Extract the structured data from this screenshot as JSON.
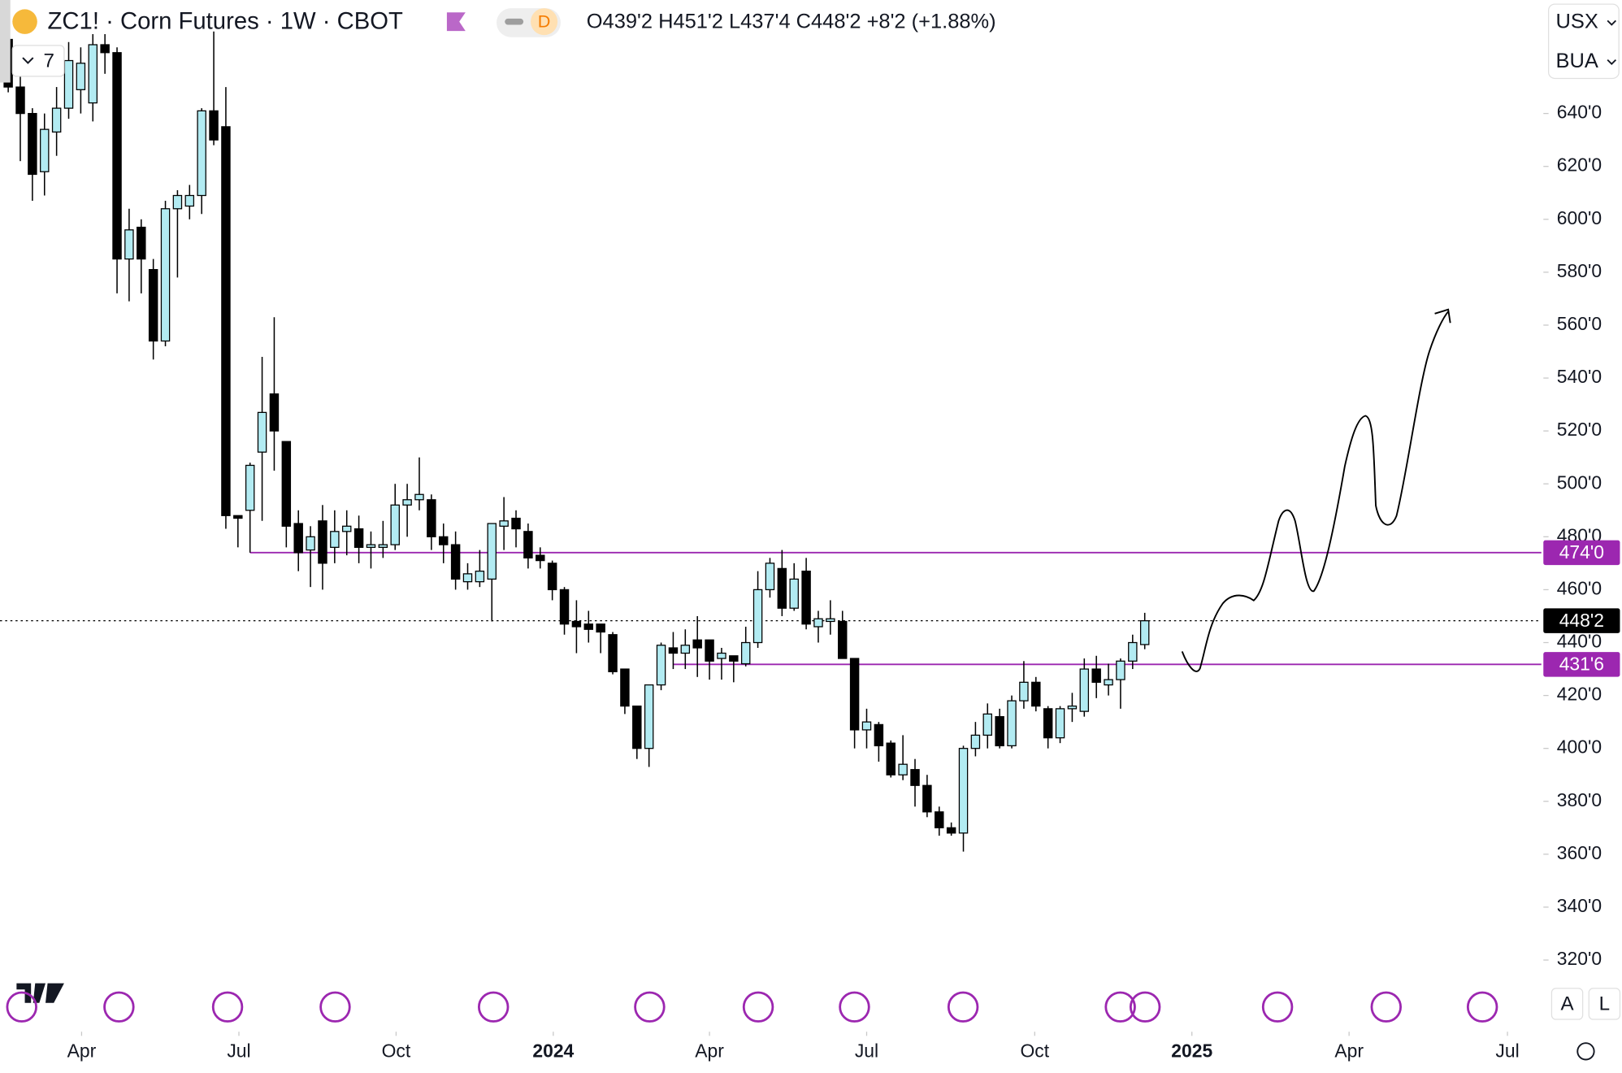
{
  "header": {
    "symbol": "ZC1! · Corn Futures · 1W · CBOT",
    "badge": "D",
    "ohlc": "O439'2 H451'2 L437'4 C448'2 +8'2 (+1.88%)",
    "indicators": "7",
    "currency": "USX",
    "unit": "BUA",
    "scale_buttons": [
      "A",
      "L"
    ]
  },
  "chart_data": {
    "type": "candlestick",
    "up_color": "#b2ebf2",
    "down_color": "#000000",
    "open": [
      668,
      650,
      640,
      618,
      633,
      642,
      649,
      644,
      666,
      663,
      585,
      597,
      581,
      554,
      604,
      605,
      609,
      641,
      635,
      488,
      490,
      512,
      534,
      516,
      485,
      475,
      486,
      476,
      482,
      483,
      476,
      476,
      477,
      492,
      494,
      494,
      480,
      477,
      463,
      463,
      464,
      484,
      487,
      482,
      473,
      470,
      460,
      448,
      447,
      447,
      443,
      430,
      416,
      400,
      424,
      438,
      436,
      441,
      441,
      434,
      435,
      432,
      440,
      460,
      468,
      453,
      467,
      446,
      448,
      448,
      434,
      407,
      409,
      402,
      390,
      392,
      386,
      376,
      370,
      368,
      400,
      405,
      412,
      401,
      418,
      425,
      415,
      404,
      415,
      414,
      430,
      424,
      426,
      433,
      439.25
    ],
    "high": [
      675,
      654,
      642,
      640,
      650,
      667,
      665,
      670,
      670,
      665,
      604,
      600,
      585,
      607,
      611,
      613,
      642,
      671,
      650,
      488,
      508,
      548,
      563,
      516,
      490,
      484,
      492,
      490,
      490,
      488,
      482,
      486,
      500,
      500,
      510,
      496,
      485,
      482,
      470,
      475,
      485,
      495,
      490,
      485,
      476,
      471,
      461,
      456,
      452,
      447,
      444,
      430,
      416,
      424,
      440,
      444,
      445,
      450,
      441,
      438,
      435,
      446,
      467,
      472,
      475,
      470,
      472,
      452,
      456,
      452,
      434,
      415,
      410,
      403,
      405,
      396,
      390,
      378,
      372,
      401,
      410,
      417,
      415,
      420,
      433,
      427,
      416,
      416,
      421,
      434,
      435,
      432,
      434,
      443,
      451.25
    ],
    "low": [
      648,
      622,
      607,
      609,
      624,
      638,
      640,
      637,
      655,
      572,
      569,
      572,
      547,
      552,
      578,
      600,
      602,
      628,
      483,
      476,
      474,
      486,
      505,
      476,
      467,
      461,
      460,
      470,
      473,
      470,
      468,
      472,
      475,
      480,
      490,
      475,
      470,
      460,
      460,
      461,
      448,
      475,
      476,
      468,
      468,
      456,
      443,
      436,
      440,
      436,
      428,
      413,
      396,
      393,
      422,
      430,
      430,
      427,
      426,
      426,
      425,
      431,
      438,
      457,
      450,
      452,
      445,
      440,
      443,
      434,
      400,
      400,
      395,
      389,
      388,
      378,
      374,
      367,
      367,
      361,
      397,
      400,
      400,
      400,
      415,
      414,
      400,
      402,
      410,
      412,
      419,
      420,
      415,
      430,
      437.5
    ],
    "close": [
      650,
      640,
      617,
      634,
      642,
      660,
      659,
      666,
      663,
      585,
      596,
      585,
      554,
      604,
      609,
      609,
      641,
      630,
      488,
      487,
      507,
      527,
      520,
      484,
      474,
      480,
      470,
      482,
      484,
      476,
      477,
      477,
      492,
      494,
      496,
      480,
      477,
      464,
      466,
      467,
      485,
      486,
      483,
      472,
      471,
      460,
      447,
      446,
      445,
      444,
      429,
      416,
      400,
      424,
      439,
      436,
      439,
      438,
      433,
      436,
      433,
      440,
      460,
      470,
      453,
      464,
      447,
      449,
      449,
      434,
      407,
      410,
      401,
      390,
      394,
      386,
      376,
      370,
      368,
      400,
      405,
      413,
      401,
      418,
      425,
      416,
      404,
      415,
      416,
      430,
      425,
      426,
      433,
      440,
      448.25
    ],
    "xlim": [
      -0.68,
      126.8
    ],
    "xticks": [
      {
        "value": 6.07,
        "label": "Apr"
      },
      {
        "value": 19.08,
        "label": "Jul"
      },
      {
        "value": 32.08,
        "label": "Oct"
      },
      {
        "value": 45.08,
        "label": "2024"
      },
      {
        "value": 58.0,
        "label": "Apr"
      },
      {
        "value": 71.0,
        "label": "Jul"
      },
      {
        "value": 84.9,
        "label": "Oct"
      },
      {
        "value": 97.9,
        "label": "2025"
      },
      {
        "value": 110.9,
        "label": "Apr"
      },
      {
        "value": 124.0,
        "label": "Jul"
      }
    ],
    "ylim": [
      312.4,
      682.9
    ],
    "yticks": [
      {
        "value": 320,
        "label": "320'0"
      },
      {
        "value": 340,
        "label": "340'0"
      },
      {
        "value": 360,
        "label": "360'0"
      },
      {
        "value": 380,
        "label": "380'0"
      },
      {
        "value": 400,
        "label": "400'0"
      },
      {
        "value": 420,
        "label": "420'0"
      },
      {
        "value": 440,
        "label": "440'0"
      },
      {
        "value": 460,
        "label": "460'0"
      },
      {
        "value": 480,
        "label": "480'0"
      },
      {
        "value": 500,
        "label": "500'0"
      },
      {
        "value": 520,
        "label": "520'0"
      },
      {
        "value": 540,
        "label": "540'0"
      },
      {
        "value": 560,
        "label": "560'0"
      },
      {
        "value": 580,
        "label": "580'0"
      },
      {
        "value": 600,
        "label": "600'0"
      },
      {
        "value": 620,
        "label": "620'0"
      },
      {
        "value": 640,
        "label": "640'0"
      }
    ],
    "hlines": [
      {
        "value": 474,
        "label": "474'0",
        "start": 20,
        "color": "#9c27b0"
      },
      {
        "value": 431.75,
        "label": "431'6",
        "start": 55,
        "color": "#9c27b0"
      }
    ],
    "last_price": {
      "value": 448.25,
      "label": "448'2",
      "color": "#000000"
    }
  }
}
